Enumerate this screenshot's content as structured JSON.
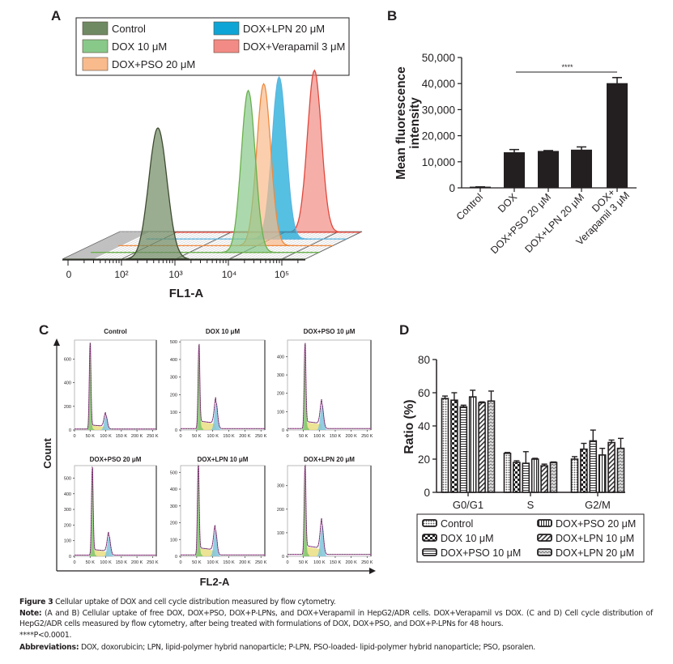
{
  "panel_labels": {
    "a": "A",
    "b": "B",
    "c": "C",
    "d": "D"
  },
  "chart_data": [
    {
      "panel": "A",
      "type": "area",
      "title": "",
      "xlabel": "FL1-A",
      "xscale": "log",
      "xticks": [
        "0",
        "10²",
        "10³",
        "10⁴",
        "10⁵"
      ],
      "legend": [
        {
          "name": "Control",
          "color": "#6f8a63",
          "stroke": "#3e4b30",
          "peak": 480
        },
        {
          "name": "DOX 10 μM",
          "color": "#88c98a",
          "stroke": "#6ab04c",
          "peak": 13000
        },
        {
          "name": "DOX+PSO 20 μM",
          "color": "#f9bb8c",
          "stroke": "#ef8a3f",
          "peak": 14000
        },
        {
          "name": "DOX+LPN 20 μM",
          "color": "#0ea5d6",
          "stroke": "#5ab4e0",
          "peak": 15000
        },
        {
          "name": "DOX+Verapamil 3 μM",
          "color": "#f28b85",
          "stroke": "#e0483c",
          "peak": 38000
        }
      ]
    },
    {
      "panel": "B",
      "type": "bar",
      "categories": [
        "Control",
        "DOX",
        "DOX+PSO 20 μM",
        "DOX+LPN 20 μM",
        "DOX+\nVerapamil 3 μM"
      ],
      "values": [
        300,
        13500,
        14000,
        14500,
        40000
      ],
      "errors": [
        100,
        1200,
        300,
        1200,
        2300
      ],
      "ylabel": [
        "Mean fluorescence",
        "intensity"
      ],
      "ylim": [
        0,
        50000
      ],
      "yticks": [
        "0",
        "10,000",
        "20,000",
        "30,000",
        "40,000",
        "50,000"
      ],
      "significance": {
        "from": 1,
        "to": 4,
        "label": "****"
      },
      "color": "#231f20"
    },
    {
      "panel": "C",
      "type": "area",
      "xlabel": "FL2-A",
      "ylabel": "Count",
      "xticks": [
        "0",
        "50 K",
        "100 K",
        "150 K",
        "200 K",
        "250 K"
      ],
      "subplots": [
        {
          "title": "Control",
          "ymax": 760,
          "yticks": [
            0,
            200,
            400,
            600
          ],
          "g1_pos": 50,
          "g1_peak": 730,
          "g2_pos": 100,
          "g2_peak": 120
        },
        {
          "title": "DOX 10 μM",
          "ymax": 510,
          "yticks": [
            0,
            100,
            200,
            300,
            400,
            500
          ],
          "g1_pos": 57,
          "g1_peak": 470,
          "g2_pos": 110,
          "g2_peak": 150
        },
        {
          "title": "DOX+PSO 10 μM",
          "ymax": 490,
          "yticks": [
            0,
            100,
            200,
            300,
            400
          ],
          "g1_pos": 55,
          "g1_peak": 460,
          "g2_pos": 108,
          "g2_peak": 135
        },
        {
          "title": "DOX+PSO 20 μM",
          "ymax": 580,
          "yticks": [
            0,
            100,
            200,
            300,
            400,
            500
          ],
          "g1_pos": 57,
          "g1_peak": 560,
          "g2_pos": 110,
          "g2_peak": 125
        },
        {
          "title": "DOX+LPN 10 μM",
          "ymax": 540,
          "yticks": [
            0,
            100,
            200,
            300,
            400,
            500
          ],
          "g1_pos": 55,
          "g1_peak": 540,
          "g2_pos": 108,
          "g2_peak": 150
        },
        {
          "title": "DOX+LPN 20 μM",
          "ymax": 385,
          "yticks": [
            0,
            100,
            200,
            300
          ],
          "g1_pos": 55,
          "g1_peak": 375,
          "g2_pos": 108,
          "g2_peak": 130
        }
      ]
    },
    {
      "panel": "D",
      "type": "bar",
      "categories": [
        "G0/G1",
        "S",
        "G2/M"
      ],
      "ylabel": "Ratio (%)",
      "ylim": [
        0,
        80
      ],
      "yticks": [
        "0",
        "20",
        "40",
        "60",
        "80"
      ],
      "series": [
        {
          "name": "Control",
          "pattern": "dots",
          "values": [
            56.5,
            23.5,
            20
          ],
          "errors": [
            1.5,
            0.5,
            1.5
          ]
        },
        {
          "name": "DOX 10 μM",
          "pattern": "checker",
          "values": [
            55.5,
            18,
            26
          ],
          "errors": [
            4.5,
            1,
            3.5
          ]
        },
        {
          "name": "DOX+PSO 10 μM",
          "pattern": "hlines",
          "values": [
            51.5,
            17.5,
            31
          ],
          "errors": [
            1,
            7,
            6.5
          ]
        },
        {
          "name": "DOX+PSO 20 μM",
          "pattern": "vlines",
          "values": [
            57.5,
            20,
            22.5
          ],
          "errors": [
            4,
            0.5,
            4
          ]
        },
        {
          "name": "DOX+LPN 10 μM",
          "pattern": "diag",
          "values": [
            54,
            16,
            30
          ],
          "errors": [
            0.5,
            1,
            1.5
          ]
        },
        {
          "name": "DOX+LPN 20 μM",
          "pattern": "zigzag",
          "values": [
            55,
            18,
            26.5
          ],
          "errors": [
            6,
            0.3,
            6
          ]
        }
      ]
    }
  ],
  "caption": {
    "figure_label": "Figure 3",
    "figure_text": " Cellular uptake of DOX and cell cycle distribution measured by flow cytometry.",
    "note_label": "Note:",
    "note_text": " (A and B) Cellular uptake of free DOX, DOX+PSO, DOX+P-LPNs, and DOX+Verapamil in HepG2/ADR cells. DOX+Verapamil vs DOX. (C and D) Cell cycle distribution of HepG2/ADR cells measured by flow cytometry, after being treated with formulations of DOX, DOX+PSO, and DOX+P-LPNs for 48 hours.",
    "significance_text": "****P<0.0001.",
    "abbrev_label": "Abbreviations:",
    "abbrev_text": " DOX, doxorubicin; LPN, lipid-polymer hybrid nanoparticle; P-LPN, PSO-loaded- lipid-polymer hybrid nanoparticle; PSO, psoralen."
  }
}
